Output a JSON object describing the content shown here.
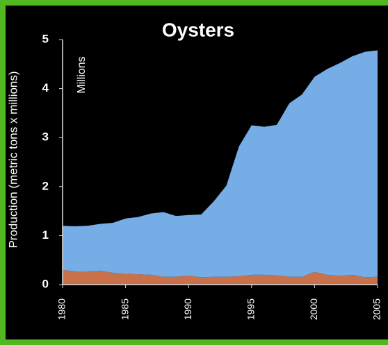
{
  "chart_data": {
    "type": "area",
    "title": "Oysters",
    "y_label": "Production (metric tons x millions)",
    "annotation": "Millions",
    "stacked": true,
    "x": [
      1980,
      1981,
      1982,
      1983,
      1984,
      1985,
      1986,
      1987,
      1988,
      1989,
      1990,
      1991,
      1992,
      1993,
      1994,
      1995,
      1996,
      1997,
      1998,
      1999,
      2000,
      2001,
      2002,
      2003,
      2004,
      2005
    ],
    "series": [
      {
        "color": "#c8714b",
        "values": [
          0.3,
          0.27,
          0.27,
          0.28,
          0.24,
          0.22,
          0.21,
          0.2,
          0.16,
          0.16,
          0.18,
          0.15,
          0.16,
          0.16,
          0.17,
          0.2,
          0.2,
          0.19,
          0.16,
          0.16,
          0.26,
          0.2,
          0.18,
          0.2,
          0.15,
          0.16
        ]
      },
      {
        "color": "#76ade6",
        "values": [
          0.9,
          0.92,
          0.93,
          0.96,
          1.02,
          1.13,
          1.17,
          1.25,
          1.32,
          1.24,
          1.24,
          1.28,
          1.54,
          1.86,
          2.65,
          3.05,
          3.02,
          3.07,
          3.54,
          3.72,
          3.98,
          4.2,
          4.34,
          4.46,
          4.6,
          4.62
        ]
      }
    ],
    "xlim": [
      1980,
      2005
    ],
    "xticks": [
      1980,
      1985,
      1990,
      1995,
      2000,
      2005
    ],
    "ylim": [
      0,
      5
    ],
    "yticks": [
      0,
      1,
      2,
      3,
      4,
      5
    ]
  }
}
